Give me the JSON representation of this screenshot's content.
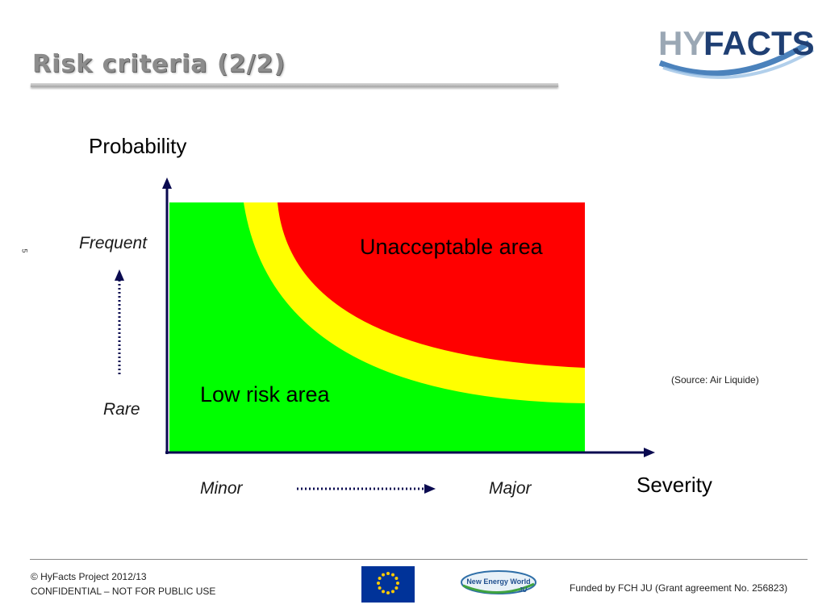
{
  "title": "Risk criteria (2/2)",
  "logo": {
    "text_hy": "HY",
    "text_facts": "FACTS"
  },
  "slide_number": "5",
  "diagram": {
    "y_axis_title": "Probability",
    "x_axis_title": "Severity",
    "y_high": "Frequent",
    "y_low": "Rare",
    "x_low": "Minor",
    "x_high": "Major",
    "zone_unacceptable": "Unacceptable area",
    "zone_low": "Low risk area",
    "colors": {
      "unacceptable": "#ff0000",
      "alarp": "#ffff00",
      "low": "#00ff00",
      "axis": "#0a0a50",
      "arrow": "#0a0a50"
    }
  },
  "source": "(Source: Air Liquide)",
  "footer": {
    "copyright": "© HyFacts Project 2012/13",
    "confidential": "CONFIDENTIAL – NOT FOR PUBLIC USE",
    "funding": "Funded by FCH JU (Grant agreement No. 256823)",
    "new_energy_logo_line1": "New Energy World",
    "new_energy_logo_line2": "JU"
  }
}
